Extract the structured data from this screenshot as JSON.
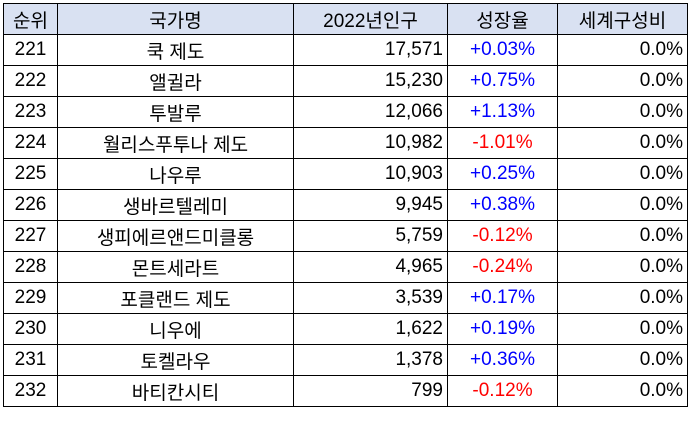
{
  "table": {
    "headers": [
      "순위",
      "국가명",
      "2022년인구",
      "성장율",
      "세계구성비"
    ],
    "rows": [
      {
        "rank": "221",
        "country": "쿡 제도",
        "population": "17,571",
        "growth": "+0.03%",
        "growth_sign": "pos",
        "share": "0.0%"
      },
      {
        "rank": "222",
        "country": "앨귈라",
        "population": "15,230",
        "growth": "+0.75%",
        "growth_sign": "pos",
        "share": "0.0%"
      },
      {
        "rank": "223",
        "country": "투발루",
        "population": "12,066",
        "growth": "+1.13%",
        "growth_sign": "pos",
        "share": "0.0%"
      },
      {
        "rank": "224",
        "country": "월리스푸투나 제도",
        "population": "10,982",
        "growth": "-1.01%",
        "growth_sign": "neg",
        "share": "0.0%"
      },
      {
        "rank": "225",
        "country": "나우루",
        "population": "10,903",
        "growth": "+0.25%",
        "growth_sign": "pos",
        "share": "0.0%"
      },
      {
        "rank": "226",
        "country": "생바르텔레미",
        "population": "9,945",
        "growth": "+0.38%",
        "growth_sign": "pos",
        "share": "0.0%"
      },
      {
        "rank": "227",
        "country": "생피에르앤드미클롱",
        "population": "5,759",
        "growth": "-0.12%",
        "growth_sign": "neg",
        "share": "0.0%"
      },
      {
        "rank": "228",
        "country": "몬트세라트",
        "population": "4,965",
        "growth": "-0.24%",
        "growth_sign": "neg",
        "share": "0.0%"
      },
      {
        "rank": "229",
        "country": "포클랜드 제도",
        "population": "3,539",
        "growth": "+0.17%",
        "growth_sign": "pos",
        "share": "0.0%"
      },
      {
        "rank": "230",
        "country": "니우에",
        "population": "1,622",
        "growth": "+0.19%",
        "growth_sign": "pos",
        "share": "0.0%"
      },
      {
        "rank": "231",
        "country": "토켈라우",
        "population": "1,378",
        "growth": "+0.36%",
        "growth_sign": "pos",
        "share": "0.0%"
      },
      {
        "rank": "232",
        "country": "바티칸시티",
        "population": "799",
        "growth": "-0.12%",
        "growth_sign": "neg",
        "share": "0.0%"
      }
    ]
  },
  "colors": {
    "header_bg": "#d9e1f2",
    "positive": "#0000ff",
    "negative": "#ff0000",
    "border": "#000000"
  }
}
